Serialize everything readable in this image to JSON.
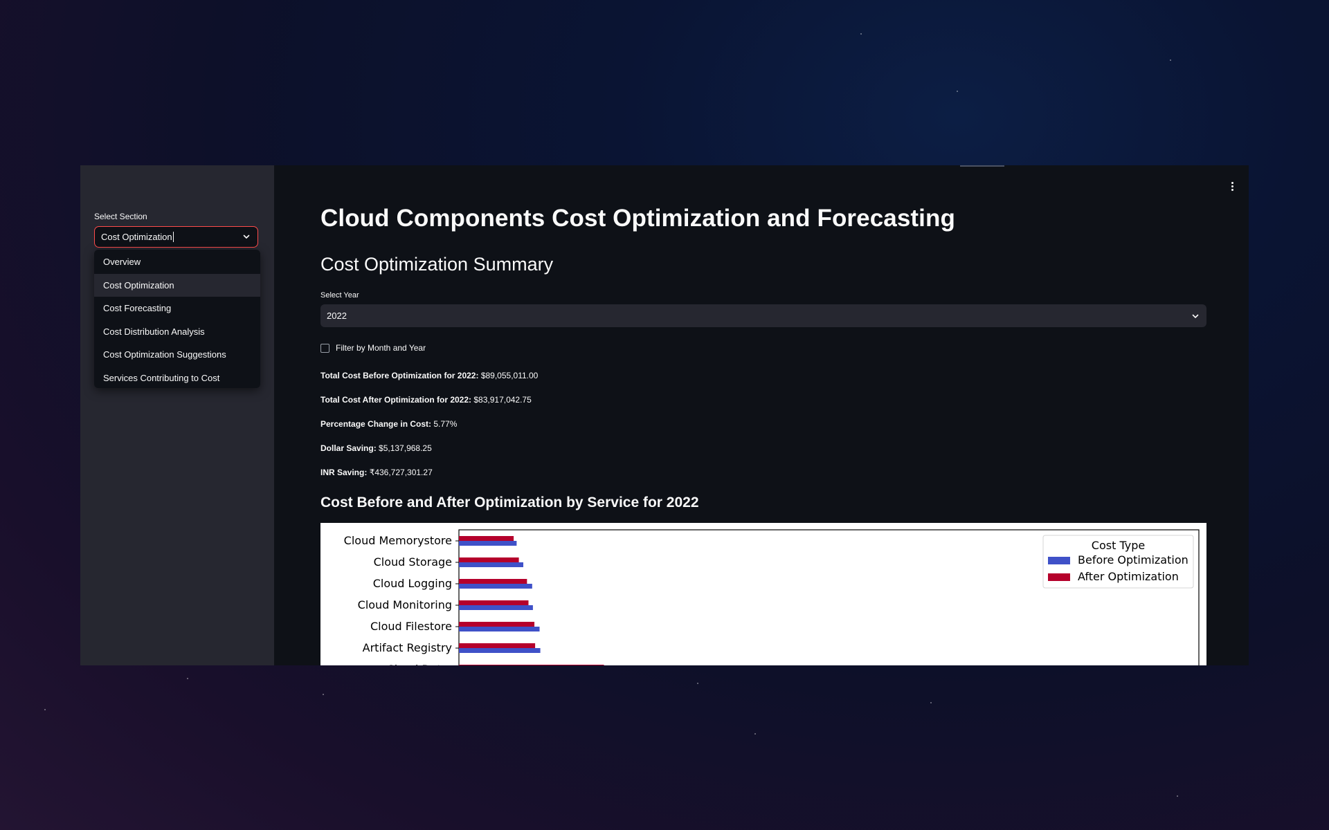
{
  "sidebar": {
    "select_label": "Select Section",
    "selected_value": "Cost Optimization",
    "options": [
      {
        "label": "Overview"
      },
      {
        "label": "Cost Optimization"
      },
      {
        "label": "Cost Forecasting"
      },
      {
        "label": "Cost Distribution Analysis"
      },
      {
        "label": "Cost Optimization Suggestions"
      },
      {
        "label": "Services Contributing to Cost"
      }
    ]
  },
  "main": {
    "title": "Cloud Components Cost Optimization and Forecasting",
    "section_title": "Cost Optimization Summary",
    "year_label": "Select Year",
    "year_value": "2022",
    "filter_label": "Filter by Month and Year",
    "metrics": [
      {
        "label": "Total Cost Before Optimization for 2022:",
        "value": "$89,055,011.00"
      },
      {
        "label": "Total Cost After Optimization for 2022:",
        "value": "$83,917,042.75"
      },
      {
        "label": "Percentage Change in Cost:",
        "value": "5.77%"
      },
      {
        "label": "Dollar Saving:",
        "value": "$5,137,968.25"
      },
      {
        "label": "INR Saving:",
        "value": "₹436,727,301.27"
      }
    ],
    "chart_title": "Cost Before and After Optimization by Service for 2022"
  },
  "chart_data": {
    "type": "bar",
    "orientation": "horizontal",
    "categories": [
      "Cloud Memorystore",
      "Cloud Storage",
      "Cloud Logging",
      "Cloud Monitoring",
      "Cloud Filestore",
      "Artifact Registry",
      "Cloud Dat..."
    ],
    "series": [
      {
        "name": "Before Optimization",
        "color": "#3f51c8",
        "values": [
          0.078,
          0.087,
          0.099,
          0.1,
          0.109,
          0.11,
          null
        ]
      },
      {
        "name": "After Optimization",
        "color": "#b5002b",
        "values": [
          0.074,
          0.081,
          0.092,
          0.094,
          0.102,
          0.103,
          0.196
        ]
      }
    ],
    "legend_title": "Cost Type",
    "legend_position": "upper right",
    "xlim": [
      0,
      1
    ],
    "grid": false
  }
}
